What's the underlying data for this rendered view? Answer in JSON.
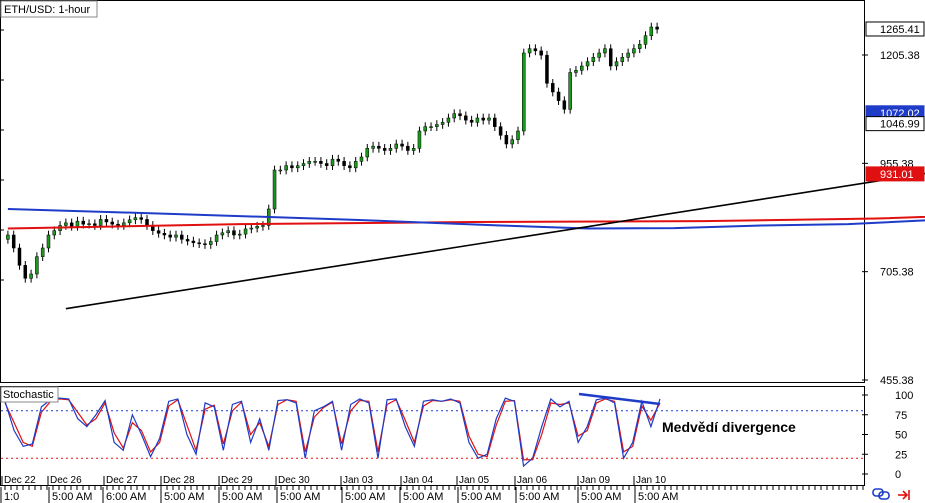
{
  "chart_data": {
    "type": "candlestick",
    "title": "ETH/USD: 1-hour",
    "indicator_title": "Stochastic",
    "annotation": "Medvědí divergence",
    "ylim": [
      455.38,
      1330
    ],
    "y_ticks": [
      1205.38,
      955.38,
      705.38,
      455.38
    ],
    "price_badges": [
      {
        "value": "1265.41",
        "bg": "#ffffff",
        "fg": "#000000"
      },
      {
        "value": "1072.02",
        "bg": "#1e3cc8",
        "fg": "#ffffff"
      },
      {
        "value": "1046.99",
        "bg": "#ffffff",
        "fg": "#000000"
      },
      {
        "value": "931.01",
        "bg": "#e01010",
        "fg": "#ffffff"
      }
    ],
    "date_labels": [
      "Dec 22",
      "Dec 26",
      "Dec 27",
      "Dec 28",
      "Dec 29",
      "Dec 30",
      "Jan 03",
      "Jan 04",
      "Jan 05",
      "Jan 06",
      "Jan 09",
      "Jan 10"
    ],
    "time_labels": [
      "1:0",
      "5:00 AM",
      "6:00 AM",
      "5:00 AM",
      "5:00 AM",
      "5:00 AM",
      "5:00 AM",
      "5:00 AM",
      "5:00 AM",
      "5:00 AM",
      "5:00 AM",
      "5:00 AM",
      "5:00 AM"
    ],
    "stoch_ticks": [
      100,
      75,
      50,
      25,
      0
    ],
    "stoch_levels": [
      80,
      20
    ],
    "close": [
      790,
      760,
      720,
      690,
      700,
      740,
      760,
      790,
      800,
      812,
      818,
      810,
      822,
      815,
      816,
      812,
      826,
      820,
      815,
      812,
      818,
      825,
      830,
      826,
      812,
      800,
      794,
      790,
      785,
      790,
      780,
      776,
      772,
      770,
      768,
      775,
      790,
      795,
      800,
      790,
      792,
      804,
      806,
      810,
      812,
      850,
      940,
      940,
      950,
      945,
      950,
      955,
      960,
      960,
      955,
      950,
      965,
      960,
      950,
      945,
      960,
      970,
      990,
      995,
      990,
      985,
      990,
      1000,
      995,
      985,
      990,
      1030,
      1040,
      1040,
      1045,
      1050,
      1060,
      1070,
      1065,
      1055,
      1050,
      1060,
      1055,
      1060,
      1040,
      1020,
      1000,
      1010,
      1030,
      1210,
      1220,
      1215,
      1205,
      1140,
      1120,
      1100,
      1080,
      1165,
      1170,
      1180,
      1190,
      1200,
      1210,
      1220,
      1180,
      1190,
      1200,
      1210,
      1220,
      1230,
      1250,
      1270,
      1265
    ],
    "ma_blue": [
      [
        0,
        850
      ],
      [
        30,
        838
      ],
      [
        60,
        825
      ],
      [
        85,
        812
      ],
      [
        100,
        805
      ],
      [
        115,
        806
      ],
      [
        130,
        812
      ],
      [
        145,
        815
      ],
      [
        160,
        825
      ],
      [
        175,
        850
      ],
      [
        190,
        885
      ],
      [
        205,
        920
      ],
      [
        220,
        955
      ],
      [
        235,
        985
      ],
      [
        250,
        1020
      ],
      [
        262,
        1055
      ],
      [
        265,
        1070
      ]
    ],
    "ma_red": [
      [
        0,
        805
      ],
      [
        40,
        815
      ],
      [
        80,
        820
      ],
      [
        120,
        822
      ],
      [
        150,
        828
      ],
      [
        175,
        840
      ],
      [
        195,
        860
      ],
      [
        215,
        885
      ],
      [
        235,
        910
      ],
      [
        255,
        940
      ],
      [
        265,
        960
      ]
    ],
    "trendline": [
      [
        10,
        620
      ],
      [
        350,
        1335
      ]
    ],
    "trendline_upper": [
      [
        245,
        1200
      ],
      [
        272,
        1312
      ]
    ],
    "stoch_k": [
      92,
      55,
      35,
      38,
      85,
      94,
      96,
      95,
      70,
      60,
      75,
      93,
      40,
      30,
      75,
      50,
      22,
      45,
      92,
      95,
      50,
      25,
      90,
      85,
      30,
      88,
      92,
      40,
      70,
      30,
      93,
      94,
      90,
      20,
      80,
      85,
      92,
      30,
      88,
      95,
      90,
      20,
      94,
      95,
      60,
      35,
      92,
      94,
      92,
      95,
      90,
      40,
      20,
      25,
      70,
      96,
      92,
      10,
      20,
      60,
      95,
      85,
      92,
      40,
      60,
      94,
      96,
      90,
      20,
      40,
      92,
      60,
      95
    ],
    "stoch_d": [
      90,
      65,
      40,
      35,
      78,
      92,
      95,
      94,
      78,
      62,
      70,
      90,
      52,
      33,
      65,
      55,
      28,
      40,
      86,
      94,
      62,
      30,
      82,
      87,
      38,
      80,
      91,
      50,
      65,
      35,
      88,
      94,
      92,
      28,
      72,
      84,
      91,
      38,
      80,
      93,
      92,
      28,
      88,
      94,
      68,
      40,
      86,
      93,
      92,
      94,
      92,
      48,
      25,
      22,
      62,
      92,
      93,
      18,
      18,
      50,
      90,
      88,
      90,
      48,
      55,
      90,
      95,
      92,
      28,
      35,
      86,
      68,
      90
    ],
    "stoch_divergence": [
      [
        579,
        394
      ],
      [
        660,
        404
      ]
    ]
  }
}
